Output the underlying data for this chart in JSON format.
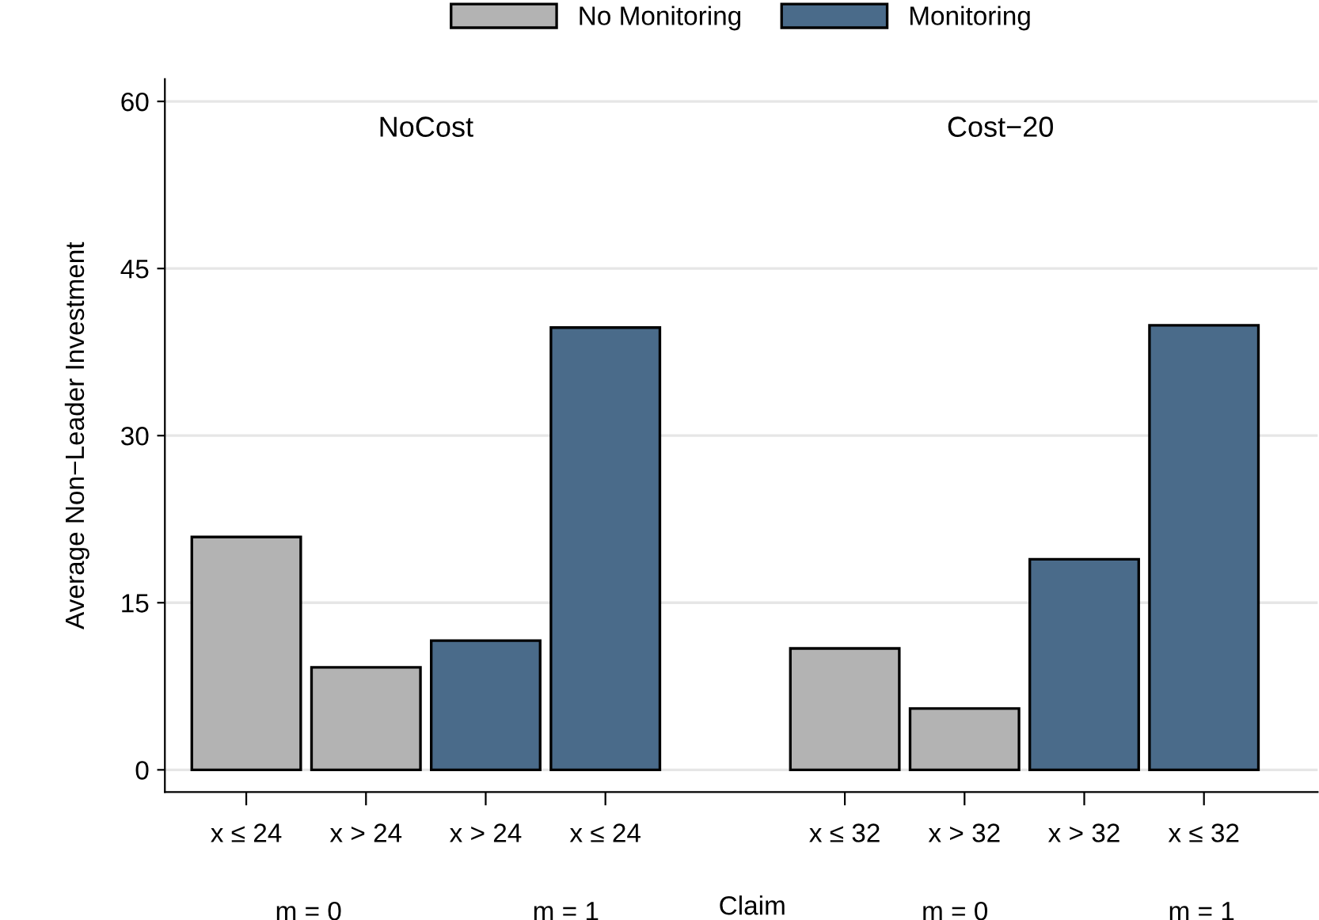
{
  "chart_data": {
    "type": "bar",
    "categories": [
      "x ≤ 24",
      "x > 24",
      "x > 24",
      "x ≤ 24",
      null,
      "x ≤ 32",
      "x > 32",
      "x > 32",
      "x ≤ 32"
    ],
    "series": [
      {
        "name": "No Monitoring",
        "color": "#b3b3b3",
        "values": [
          20.9,
          9.2,
          null,
          null,
          null,
          10.9,
          5.5,
          null,
          null
        ]
      },
      {
        "name": "Monitoring",
        "color": "#4a6b8a",
        "values": [
          null,
          null,
          11.6,
          39.7,
          null,
          null,
          null,
          18.9,
          39.9
        ]
      }
    ],
    "xlabel": "Claim",
    "ylabel": "Average Non−Leader Investment",
    "ylim": [
      -2,
      62
    ],
    "yticks": [
      0,
      15,
      30,
      45,
      60
    ],
    "annotations": [
      "NoCost",
      "Cost−20",
      "m = 0",
      "m = 1",
      "m = 0",
      "m = 1"
    ],
    "grid": "y",
    "legend": "top"
  }
}
